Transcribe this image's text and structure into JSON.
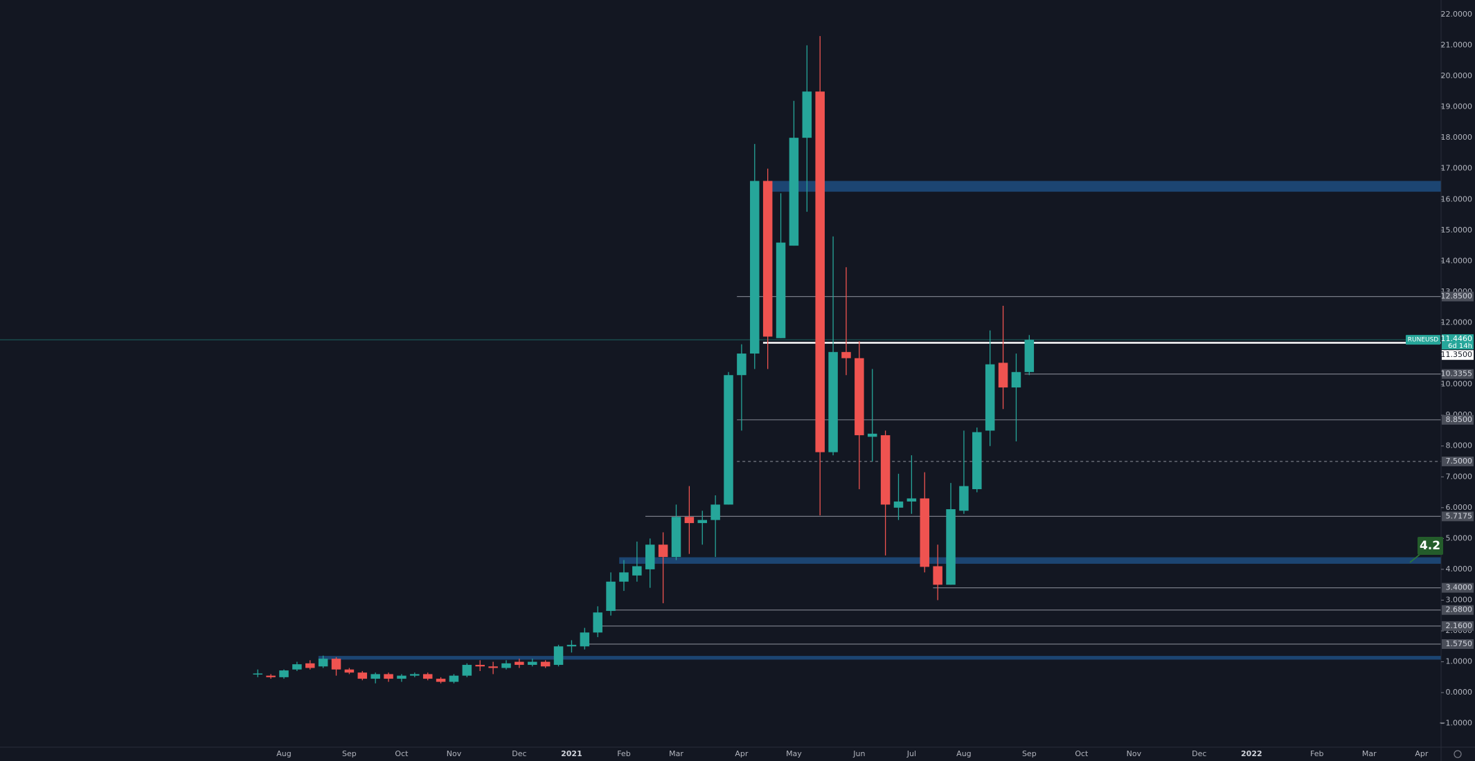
{
  "chart_data": {
    "type": "candlestick",
    "symbol": "RUNEUSD",
    "countdown": "6d 14h",
    "last_price": {
      "value": 11.446,
      "label": "11.4460"
    },
    "annotation": "4.2",
    "up_color": "#26a69a",
    "down_color": "#ef5350",
    "grid": false,
    "categories": [
      null,
      null,
      "Aug",
      null,
      null,
      null,
      null,
      "Sep",
      null,
      null,
      null,
      "Oct",
      null,
      null,
      null,
      "Nov",
      null,
      null,
      null,
      null,
      "Dec",
      null,
      null,
      null,
      "2021",
      null,
      null,
      null,
      "Feb",
      null,
      null,
      null,
      "Mar",
      null,
      null,
      null,
      null,
      "Apr",
      null,
      null,
      null,
      "May",
      null,
      null,
      null,
      null,
      "Jun",
      null,
      null,
      null,
      "Jul",
      null,
      null,
      null,
      "Aug",
      null,
      null,
      null,
      null,
      "Sep",
      null,
      null,
      null,
      "Oct",
      null,
      null,
      null,
      "Nov",
      null,
      null,
      null,
      null,
      "Dec",
      null,
      null,
      null,
      "2022",
      null,
      null,
      null,
      null,
      "Feb",
      null,
      null,
      null,
      "Mar",
      null,
      null,
      null,
      "Apr",
      null
    ],
    "open": [
      0.6,
      0.55,
      0.5,
      0.75,
      0.95,
      0.85,
      1.1,
      0.75,
      0.65,
      0.45,
      0.6,
      0.45,
      0.55,
      0.6,
      0.45,
      0.35,
      0.55,
      0.9,
      0.85,
      0.8,
      1.0,
      0.9,
      1.0,
      0.9,
      1.5,
      1.5,
      1.95,
      2.65,
      3.6,
      3.8,
      4.0,
      4.8,
      4.4,
      5.7,
      5.5,
      5.6,
      6.1,
      10.3,
      11.0,
      16.6,
      11.5,
      14.5,
      18.0,
      19.5,
      7.8,
      11.05,
      10.85,
      8.3,
      8.35,
      6.0,
      6.2,
      6.3,
      4.1,
      3.5,
      5.9,
      6.6,
      8.5,
      10.7,
      9.9,
      10.4,
      null,
      null,
      null,
      null,
      null,
      null,
      null,
      null,
      null,
      null,
      null,
      null,
      null,
      null,
      null,
      null,
      null,
      null,
      null,
      null,
      null,
      null,
      null,
      null,
      null,
      null,
      null,
      null,
      null,
      null,
      null
    ],
    "high": [
      0.75,
      0.6,
      0.75,
      1.0,
      1.05,
      1.2,
      1.15,
      0.8,
      0.7,
      0.65,
      0.65,
      0.6,
      0.65,
      0.65,
      0.5,
      0.6,
      0.95,
      1.05,
      1.0,
      1.05,
      1.1,
      1.1,
      1.05,
      1.55,
      1.7,
      2.1,
      2.8,
      3.9,
      4.3,
      4.9,
      5.0,
      5.2,
      6.1,
      6.7,
      5.9,
      6.4,
      10.4,
      11.3,
      17.8,
      17.0,
      16.2,
      19.2,
      21.0,
      21.3,
      14.8,
      13.8,
      11.4,
      10.5,
      8.5,
      7.1,
      7.7,
      7.15,
      4.8,
      6.8,
      8.5,
      8.6,
      11.75,
      12.55,
      11.0,
      11.6,
      null,
      null,
      null,
      null,
      null,
      null,
      null,
      null,
      null,
      null,
      null,
      null,
      null,
      null,
      null,
      null,
      null,
      null,
      null,
      null,
      null,
      null,
      null,
      null,
      null,
      null,
      null,
      null,
      null,
      null,
      null
    ],
    "low": [
      0.5,
      0.45,
      0.45,
      0.7,
      0.75,
      0.8,
      0.55,
      0.6,
      0.4,
      0.3,
      0.35,
      0.35,
      0.5,
      0.4,
      0.3,
      0.3,
      0.5,
      0.7,
      0.6,
      0.75,
      0.8,
      0.85,
      0.8,
      0.85,
      1.3,
      1.4,
      1.8,
      2.5,
      3.3,
      3.6,
      3.4,
      2.9,
      4.3,
      4.5,
      4.8,
      4.4,
      6.1,
      8.5,
      10.5,
      10.5,
      11.5,
      14.5,
      15.6,
      5.75,
      7.7,
      10.3,
      6.6,
      7.5,
      4.45,
      5.6,
      5.8,
      3.9,
      3.0,
      3.5,
      5.8,
      6.5,
      8.0,
      9.2,
      8.15,
      10.3,
      null,
      null,
      null,
      null,
      null,
      null,
      null,
      null,
      null,
      null,
      null,
      null,
      null,
      null,
      null,
      null,
      null,
      null,
      null,
      null,
      null,
      null,
      null,
      null,
      null,
      null,
      null,
      null,
      null,
      null,
      null
    ],
    "close": [
      0.62,
      0.5,
      0.72,
      0.92,
      0.8,
      1.1,
      0.75,
      0.65,
      0.45,
      0.6,
      0.45,
      0.55,
      0.6,
      0.45,
      0.35,
      0.55,
      0.9,
      0.85,
      0.8,
      0.95,
      0.9,
      1.0,
      0.85,
      1.5,
      1.55,
      1.95,
      2.6,
      3.6,
      3.9,
      4.1,
      4.8,
      4.4,
      5.7,
      5.5,
      5.6,
      6.1,
      10.3,
      11.0,
      16.6,
      11.55,
      14.6,
      18.0,
      19.5,
      7.8,
      11.05,
      10.85,
      8.35,
      8.4,
      6.1,
      6.2,
      6.3,
      4.08,
      3.5,
      5.95,
      6.7,
      8.45,
      10.65,
      9.9,
      10.4,
      11.446,
      null,
      null,
      null,
      null,
      null,
      null,
      null,
      null,
      null,
      null,
      null,
      null,
      null,
      null,
      null,
      null,
      null,
      null,
      null,
      null,
      null,
      null,
      null,
      null,
      null,
      null,
      null,
      null,
      null,
      null,
      null
    ],
    "ylim": [
      -1.77,
      22.47
    ],
    "yticks": [
      {
        "value": -1,
        "label": "−1.0000"
      },
      {
        "value": 0,
        "label": "0.0000"
      },
      {
        "value": 1,
        "label": "1.0000"
      },
      {
        "value": 2,
        "label": "2.0000"
      },
      {
        "value": 3,
        "label": "3.0000"
      },
      {
        "value": 4,
        "label": "4.0000"
      },
      {
        "value": 5,
        "label": "5.0000"
      },
      {
        "value": 6,
        "label": "6.0000"
      },
      {
        "value": 7,
        "label": "7.0000"
      },
      {
        "value": 8,
        "label": "8.0000"
      },
      {
        "value": 9,
        "label": "9.0000"
      },
      {
        "value": 10,
        "label": "10.0000"
      },
      {
        "value": 11,
        "label": "11.0000"
      },
      {
        "value": 12,
        "label": "12.0000"
      },
      {
        "value": 13,
        "label": "13.0000"
      },
      {
        "value": 14,
        "label": "14.0000"
      },
      {
        "value": 15,
        "label": "15.0000"
      },
      {
        "value": 16,
        "label": "16.0000"
      },
      {
        "value": 17,
        "label": "17.0000"
      },
      {
        "value": 18,
        "label": "18.0000"
      },
      {
        "value": 19,
        "label": "19.0000"
      },
      {
        "value": 20,
        "label": "20.0000"
      },
      {
        "value": 21,
        "label": "21.0000"
      },
      {
        "value": 22,
        "label": "22.0000"
      }
    ],
    "levels": [
      {
        "value": 12.85,
        "label": "12.8500",
        "color": "#787b86"
      },
      {
        "value": 11.35,
        "label": "11.3500",
        "color": "#ffffff"
      },
      {
        "value": 10.3355,
        "label": "10.3355",
        "color": "#787b86"
      },
      {
        "value": 8.85,
        "label": "8.8500",
        "color": "#787b86"
      },
      {
        "value": 7.5,
        "label": "7.5000",
        "color": "#787b86",
        "dashed": true
      },
      {
        "value": 5.7175,
        "label": "5.7175",
        "color": "#787b86"
      },
      {
        "value": 3.4,
        "label": "3.4000",
        "color": "#787b86"
      },
      {
        "value": 2.68,
        "label": "2.6800",
        "color": "#787b86"
      },
      {
        "value": 2.16,
        "label": "2.1600",
        "color": "#787b86"
      },
      {
        "value": 1.575,
        "label": "1.5750",
        "color": "#787b86"
      }
    ],
    "zones": [
      {
        "from": 16.25,
        "to": 16.6,
        "color": "#1f4e80"
      },
      {
        "from": 4.18,
        "to": 4.39,
        "color": "#1f4e80"
      },
      {
        "from": 1.07,
        "to": 1.19,
        "color": "#1f4e80"
      }
    ]
  }
}
